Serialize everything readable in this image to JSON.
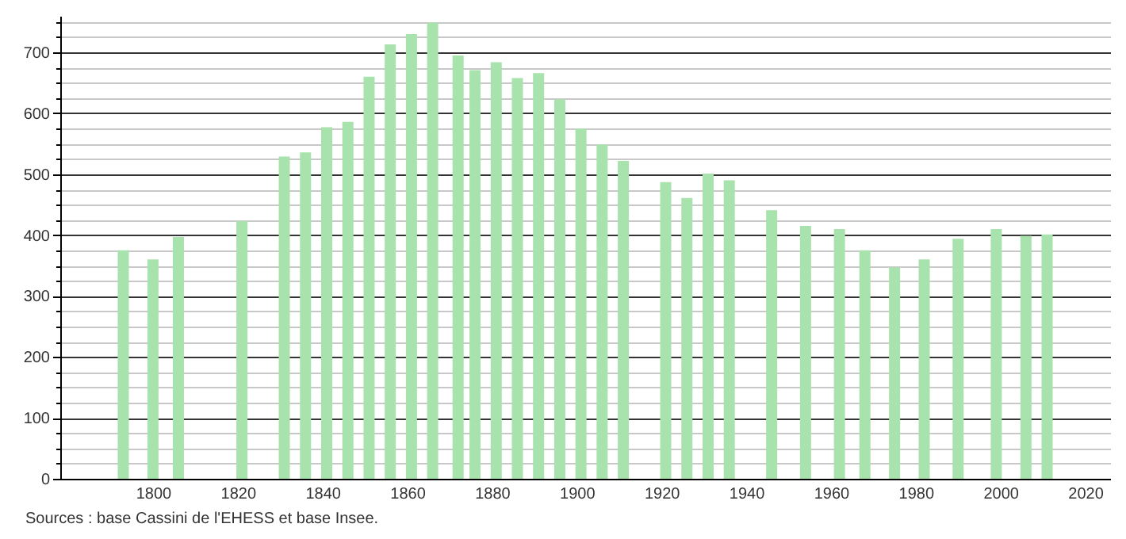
{
  "chart_data": {
    "type": "bar",
    "x": [
      1793,
      1800,
      1806,
      1821,
      1831,
      1836,
      1841,
      1846,
      1851,
      1856,
      1861,
      1866,
      1872,
      1876,
      1881,
      1886,
      1891,
      1896,
      1901,
      1906,
      1911,
      1921,
      1926,
      1931,
      1936,
      1946,
      1954,
      1962,
      1968,
      1975,
      1982,
      1990,
      1999,
      2006,
      2011
    ],
    "values": [
      375,
      360,
      397,
      423,
      529,
      536,
      577,
      586,
      660,
      713,
      730,
      749,
      695,
      671,
      684,
      658,
      666,
      623,
      575,
      549,
      522,
      487,
      461,
      501,
      490,
      441,
      415,
      410,
      375,
      347,
      360,
      394,
      410,
      399,
      401
    ],
    "color": "#a8e2ad",
    "xlim": [
      1780,
      2024
    ],
    "xticks": [
      1800,
      1820,
      1840,
      1860,
      1880,
      1900,
      1920,
      1940,
      1960,
      1980,
      2000,
      2020
    ],
    "ylim": [
      0,
      760
    ],
    "yticks": [
      0,
      {
        "value": 25,
        "label": null
      },
      {
        "value": 50,
        "label": null
      },
      {
        "value": 75,
        "label": null
      },
      100,
      {
        "value": 125,
        "label": null
      },
      {
        "value": 150,
        "label": null
      },
      {
        "value": 175,
        "label": null
      },
      200,
      {
        "value": 225,
        "label": null
      },
      {
        "value": 250,
        "label": null
      },
      {
        "value": 275,
        "label": null
      },
      300,
      {
        "value": 325,
        "label": null
      },
      {
        "value": 350,
        "label": null
      },
      {
        "value": 375,
        "label": null
      },
      400,
      {
        "value": 425,
        "label": null
      },
      {
        "value": 450,
        "label": null
      },
      {
        "value": 475,
        "label": null
      },
      500,
      {
        "value": 525,
        "label": null
      },
      {
        "value": 550,
        "label": null
      },
      {
        "value": 575,
        "label": null
      },
      600,
      {
        "value": 625,
        "label": null
      },
      {
        "value": 650,
        "label": null
      },
      {
        "value": 675,
        "label": null
      },
      700,
      {
        "value": 725,
        "label": null
      },
      {
        "value": 750,
        "label": null
      }
    ],
    "grid": "y",
    "annotations": [
      "Sources : base Cassini de l'EHESS et base Insee."
    ]
  }
}
